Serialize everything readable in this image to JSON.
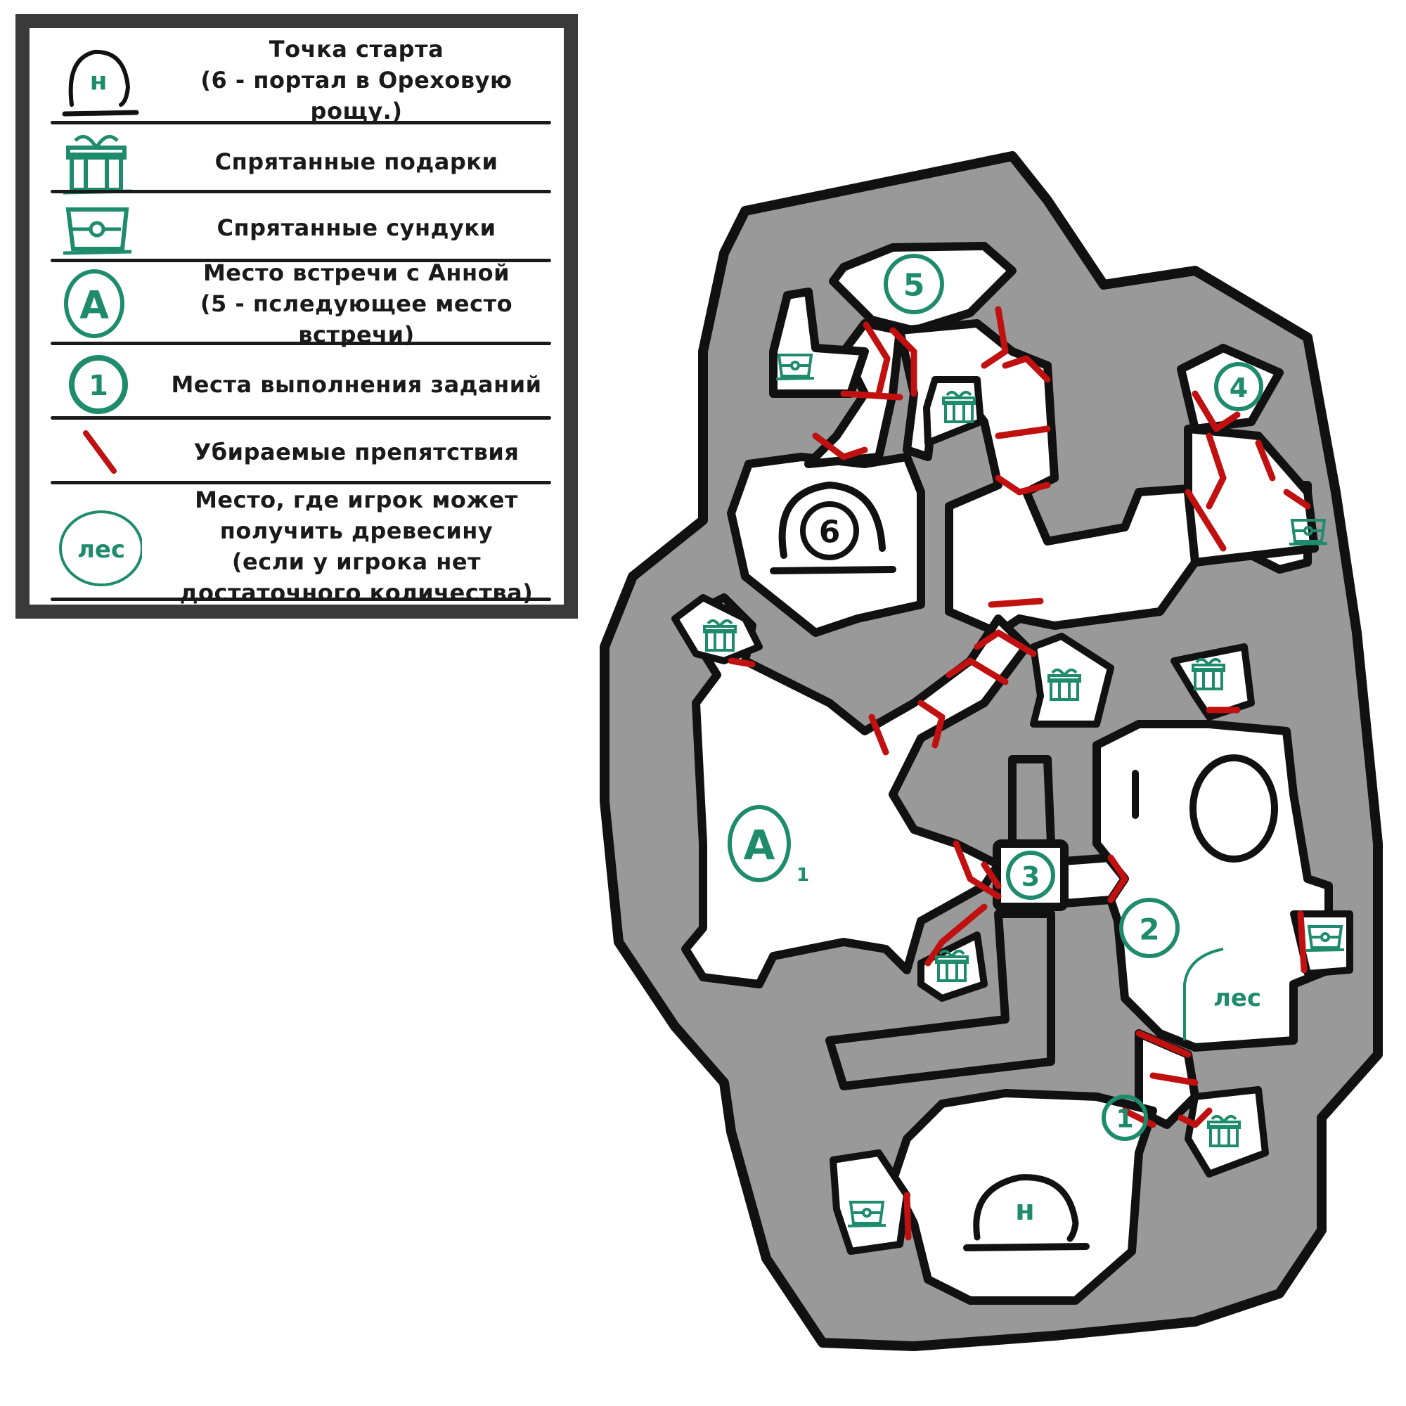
{
  "legend": {
    "items": [
      {
        "icon": "start-point-icon",
        "lines": [
          "Точка старта",
          "(6 - портал в Ореховую рощу.)"
        ]
      },
      {
        "icon": "gift-icon",
        "lines": [
          "Спрятанные подарки"
        ]
      },
      {
        "icon": "chest-icon",
        "lines": [
          "Спрятанные сундуки"
        ]
      },
      {
        "icon": "anna-meeting-icon",
        "lines": [
          "Место встречи с Анной",
          "(5 - пследующее место встречи)"
        ]
      },
      {
        "icon": "quest-location-icon",
        "lines": [
          "Места выполнения заданий"
        ]
      },
      {
        "icon": "obstacle-icon",
        "lines": [
          "Убираемые препятствия"
        ]
      },
      {
        "icon": "wood-icon",
        "lines": [
          "Место, где игрок может",
          "получить древесину",
          "(если у игрока нет",
          "достаточного количества)"
        ]
      }
    ],
    "icon_labels": {
      "start": "н",
      "anna": "А",
      "quest": "1",
      "wood": "лес"
    }
  },
  "map": {
    "colors": {
      "wall": "#999999",
      "outline": "#111111",
      "floor": "#ffffff",
      "obstacle": "#c01010",
      "marker": "#1e8c6c"
    },
    "labels": {
      "start": "н",
      "portal": "6",
      "anna": "А",
      "anna_index": "1",
      "next_meeting": "5",
      "quest_1": "1",
      "quest_2": "2",
      "quest_3": "3",
      "quest_4": "4",
      "wood": "лес"
    }
  }
}
